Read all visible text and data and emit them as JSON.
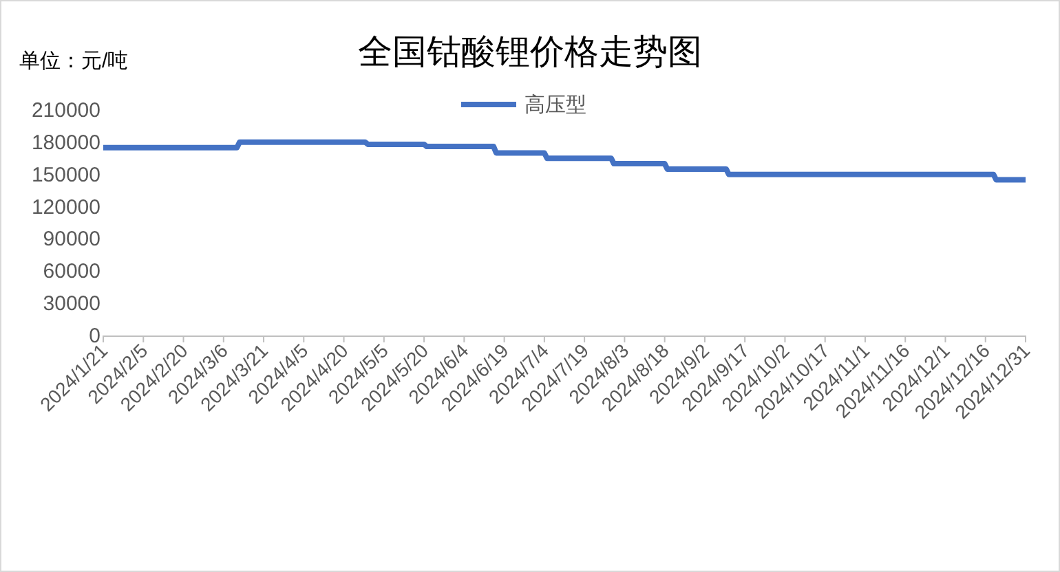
{
  "chart_data": {
    "type": "line",
    "title": "全国钴酸锂价格走势图",
    "ylabel": "单位：元/吨",
    "legend": "top",
    "grid": false,
    "series": [
      {
        "name": "高压型",
        "color": "#4472c4",
        "x": [
          "2024-01-21",
          "2024-03-11",
          "2024-03-12",
          "2024-04-28",
          "2024-04-29",
          "2024-05-20",
          "2024-05-21",
          "2024-06-15",
          "2024-06-16",
          "2024-07-04",
          "2024-07-05",
          "2024-07-29",
          "2024-07-30",
          "2024-08-18",
          "2024-08-19",
          "2024-09-10",
          "2024-09-11",
          "2024-12-19",
          "2024-12-20",
          "2024-12-31"
        ],
        "values": [
          175000,
          175000,
          180000,
          180000,
          178000,
          178000,
          176000,
          176000,
          170000,
          170000,
          165000,
          165000,
          160000,
          160000,
          155000,
          155000,
          150000,
          150000,
          145000,
          145000
        ]
      }
    ],
    "xlim": [
      "2024-01-21",
      "2024-12-31"
    ],
    "xticks": [
      {
        "value": "2024-01-21",
        "label": "2024/1/21"
      },
      {
        "value": "2024-02-05",
        "label": "2024/2/5"
      },
      {
        "value": "2024-02-20",
        "label": "2024/2/20"
      },
      {
        "value": "2024-03-06",
        "label": "2024/3/6"
      },
      {
        "value": "2024-03-21",
        "label": "2024/3/21"
      },
      {
        "value": "2024-04-05",
        "label": "2024/4/5"
      },
      {
        "value": "2024-04-20",
        "label": "2024/4/20"
      },
      {
        "value": "2024-05-05",
        "label": "2024/5/5"
      },
      {
        "value": "2024-05-20",
        "label": "2024/5/20"
      },
      {
        "value": "2024-06-04",
        "label": "2024/6/4"
      },
      {
        "value": "2024-06-19",
        "label": "2024/6/19"
      },
      {
        "value": "2024-07-04",
        "label": "2024/7/4"
      },
      {
        "value": "2024-07-19",
        "label": "2024/7/19"
      },
      {
        "value": "2024-08-03",
        "label": "2024/8/3"
      },
      {
        "value": "2024-08-18",
        "label": "2024/8/18"
      },
      {
        "value": "2024-09-02",
        "label": "2024/9/2"
      },
      {
        "value": "2024-09-17",
        "label": "2024/9/17"
      },
      {
        "value": "2024-10-02",
        "label": "2024/10/2"
      },
      {
        "value": "2024-10-17",
        "label": "2024/10/17"
      },
      {
        "value": "2024-11-01",
        "label": "2024/11/1"
      },
      {
        "value": "2024-11-16",
        "label": "2024/11/16"
      },
      {
        "value": "2024-12-01",
        "label": "2024/12/1"
      },
      {
        "value": "2024-12-16",
        "label": "2024/12/16"
      },
      {
        "value": "2024-12-31",
        "label": "2024/12/31"
      }
    ],
    "ylim": [
      0,
      210000
    ],
    "yticks": [
      0,
      30000,
      60000,
      90000,
      120000,
      150000,
      180000,
      210000
    ]
  }
}
